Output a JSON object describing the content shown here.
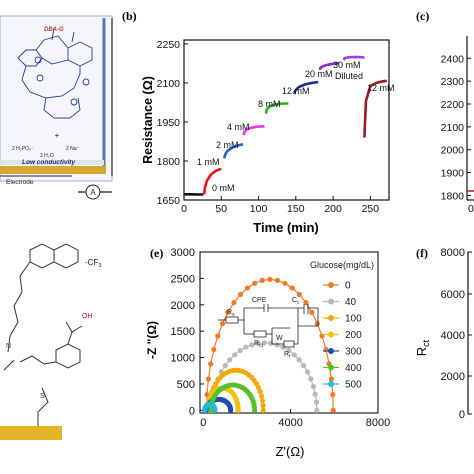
{
  "panel_labels": {
    "b": "(b)",
    "c": "(c)",
    "e": "(e)",
    "f": "(f)"
  },
  "schematic": {
    "reagent": "DBA-G",
    "plus": "+",
    "anions": "2 H₂PO₄⁻",
    "cations": "2 Na⁺",
    "water": "2 H₂O",
    "conductivity": "Low conductivity",
    "electrode": "Electrode",
    "meter": "A"
  },
  "colors": {
    "b_0": "#111111",
    "b_1": "#e8131b",
    "b_2": "#1e63d0",
    "b_4": "#e23ae6",
    "b_8": "#27b61d",
    "b_12": "#1a2d96",
    "b_20": "#8a2bc4",
    "b_30": "#9b3fe0",
    "b_dil": "#9a1a2a",
    "e_0": "#f07a2b",
    "e_40": "#b8b8b8",
    "e_100": "#f5a80a",
    "e_200": "#f2c10a",
    "e_300": "#1d4ea8",
    "e_400": "#55c02c",
    "e_500": "#22b9d8"
  },
  "chart_data": [
    {
      "type": "line",
      "panel": "(b)",
      "xlabel": "Time (min)",
      "ylabel": "Resistance (Ω)",
      "xlim": [
        0,
        275
      ],
      "ylim": [
        1650,
        2265
      ],
      "xticks": [
        "0",
        "50",
        "100",
        "150",
        "200",
        "250"
      ],
      "yticks": [
        "1650",
        "1800",
        "1950",
        "2100",
        "2250"
      ],
      "series": [
        {
          "name": "0 mM",
          "color_key": "b_0",
          "x": [
            0,
            10,
            20,
            26
          ],
          "y": [
            1672,
            1672,
            1671,
            1671
          ]
        },
        {
          "name": "1 mM",
          "color_key": "b_1",
          "x": [
            27,
            28,
            31,
            36,
            42,
            48,
            50
          ],
          "y": [
            1672,
            1698,
            1725,
            1747,
            1761,
            1768,
            1770
          ]
        },
        {
          "name": "2 mM",
          "color_key": "b_2",
          "x": [
            54,
            55,
            58,
            64,
            70,
            76,
            79
          ],
          "y": [
            1810,
            1823,
            1838,
            1850,
            1858,
            1862,
            1864
          ]
        },
        {
          "name": "4 mM",
          "color_key": "b_4",
          "x": [
            80,
            81,
            85,
            92,
            100,
            106,
            108
          ],
          "y": [
            1899,
            1912,
            1923,
            1929,
            1932,
            1933,
            1933
          ]
        },
        {
          "name": "8 mM",
          "color_key": "b_8",
          "x": [
            110,
            111,
            115,
            122,
            130,
            136,
            140
          ],
          "y": [
            1982,
            1998,
            2010,
            2017,
            2020,
            2021,
            2021
          ]
        },
        {
          "name": "12 mM",
          "color_key": "b_12",
          "x": [
            148,
            149,
            154,
            162,
            170,
            176,
            180
          ],
          "y": [
            2057,
            2070,
            2084,
            2094,
            2099,
            2102,
            2103
          ]
        },
        {
          "name": "20 mM",
          "color_key": "b_20",
          "x": [
            182,
            183,
            188,
            196,
            204,
            208
          ],
          "y": [
            2150,
            2158,
            2166,
            2172,
            2175,
            2176
          ]
        },
        {
          "name": "30 mM",
          "color_key": "b_30",
          "x": [
            214,
            216,
            222,
            230,
            238,
            242
          ],
          "y": [
            2189,
            2196,
            2199,
            2200,
            2199,
            2197
          ]
        },
        {
          "name": "Diluted 12 mM",
          "color_key": "b_dil",
          "x": [
            242,
            244,
            250,
            258,
            266,
            272
          ],
          "y": [
            1890,
            2030,
            2088,
            2100,
            2106,
            2108
          ]
        }
      ],
      "annotations": [
        "0 mM",
        "1 mM",
        "2 mM",
        "4 mM",
        "8 mM",
        "12 mM",
        "20 mM",
        "30 mM",
        "Diluted",
        "12 mM"
      ]
    },
    {
      "type": "line",
      "panel": "(c)",
      "ylabel": "",
      "ylim": [
        1780,
        2480
      ],
      "yticks": [
        "2400",
        "2300",
        "2200",
        "2100",
        "2000",
        "1900",
        "1800"
      ],
      "xticks_visible": [
        "0"
      ],
      "series": [
        {
          "name": "",
          "color_key": "b_dil",
          "x": [
            0,
            0.3
          ],
          "y": [
            1795,
            1795
          ]
        }
      ]
    },
    {
      "type": "scatter",
      "panel": "(e)",
      "xlabel": "Z'(Ω)",
      "ylabel": "-Z \"(Ω)",
      "xlim": [
        -150,
        8000
      ],
      "ylim": [
        -50,
        3000
      ],
      "xticks": [
        "0",
        "4000",
        "8000"
      ],
      "yticks": [
        "0",
        "500",
        "1000",
        "1500",
        "2000",
        "2500",
        "3000"
      ],
      "legend_title": "Glucose(mg/dL)",
      "legend_position": "top-right",
      "series": [
        {
          "name": "0",
          "color_key": "e_0",
          "center": 3050,
          "radius": 2900,
          "peak": 2480
        },
        {
          "name": "40",
          "color_key": "e_40",
          "center": 2800,
          "radius": 2400,
          "peak": 1280
        },
        {
          "name": "100",
          "color_key": "e_100",
          "center": 1500,
          "radius": 1250,
          "peak": 760
        },
        {
          "name": "200",
          "color_key": "e_200",
          "center": 900,
          "radius": 700,
          "peak": 420
        },
        {
          "name": "300",
          "color_key": "e_300",
          "center": 700,
          "radius": 550,
          "peak": 210
        },
        {
          "name": "400",
          "color_key": "e_400",
          "center": 1350,
          "radius": 1000,
          "peak": 480
        },
        {
          "name": "500",
          "color_key": "e_500",
          "center": 300,
          "radius": 230,
          "peak": 120
        }
      ],
      "circuit_labels": {
        "cpe": "CPE",
        "rs": "R",
        "rs_sub": "s",
        "rct": "R",
        "rct_sub": "ct",
        "cc": "C",
        "cc_sub": "c",
        "w": "W",
        "rf": "R",
        "rf_sub": "f"
      }
    },
    {
      "type": "line",
      "panel": "(f)",
      "ylabel": "R",
      "ylabel_sub": "ct",
      "yticks": [
        "8000",
        "6000",
        "4000",
        "2000",
        "0"
      ],
      "series": []
    }
  ]
}
